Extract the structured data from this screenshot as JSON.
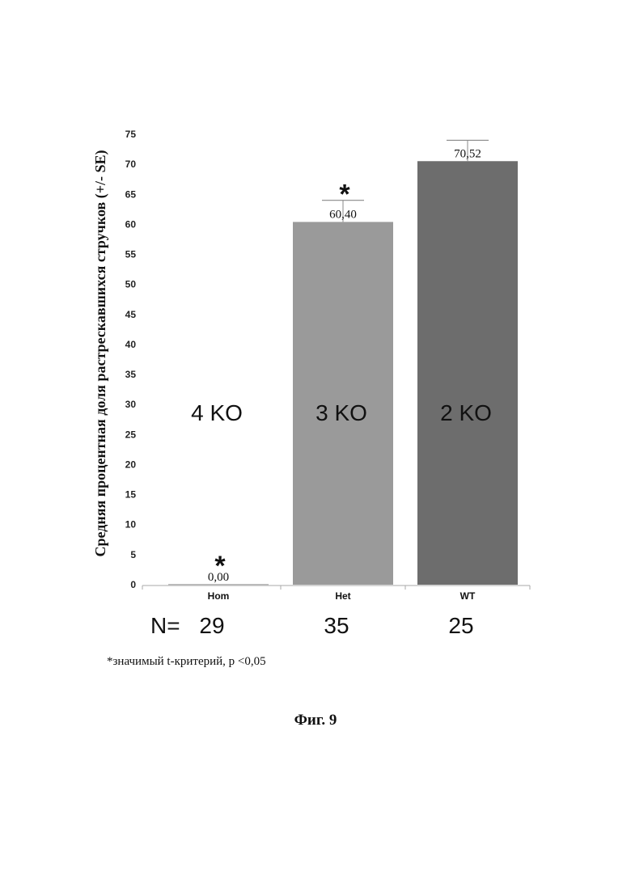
{
  "chart_data": {
    "type": "bar",
    "ylabel": "Средняя процентная доля растрескавшихся стручков (+/- SE)",
    "ylim": [
      0,
      75
    ],
    "yticks": [
      "0",
      "5",
      "10",
      "15",
      "20",
      "25",
      "30",
      "35",
      "40",
      "45",
      "50",
      "55",
      "60",
      "65",
      "70",
      "75"
    ],
    "categories": [
      "Hom",
      "Het",
      "WT"
    ],
    "values": [
      0.0,
      60.4,
      70.52
    ],
    "se_upper": [
      0.0,
      64.0,
      74.0
    ],
    "value_labels": [
      "0,00",
      "60,40",
      "70,52"
    ],
    "bar_text": [
      "4 KO",
      "3 KO",
      "2 KO"
    ],
    "significant": [
      true,
      true,
      false
    ],
    "significance_mark": "*",
    "colors": [
      "#c7c7c7",
      "#9a9a9a",
      "#6d6d6d"
    ],
    "n_prefix": "N=",
    "n_values": [
      "29",
      "35",
      "25"
    ]
  },
  "footnote": "*значимый t-критерий, р <0,05",
  "caption": "Фиг. 9"
}
